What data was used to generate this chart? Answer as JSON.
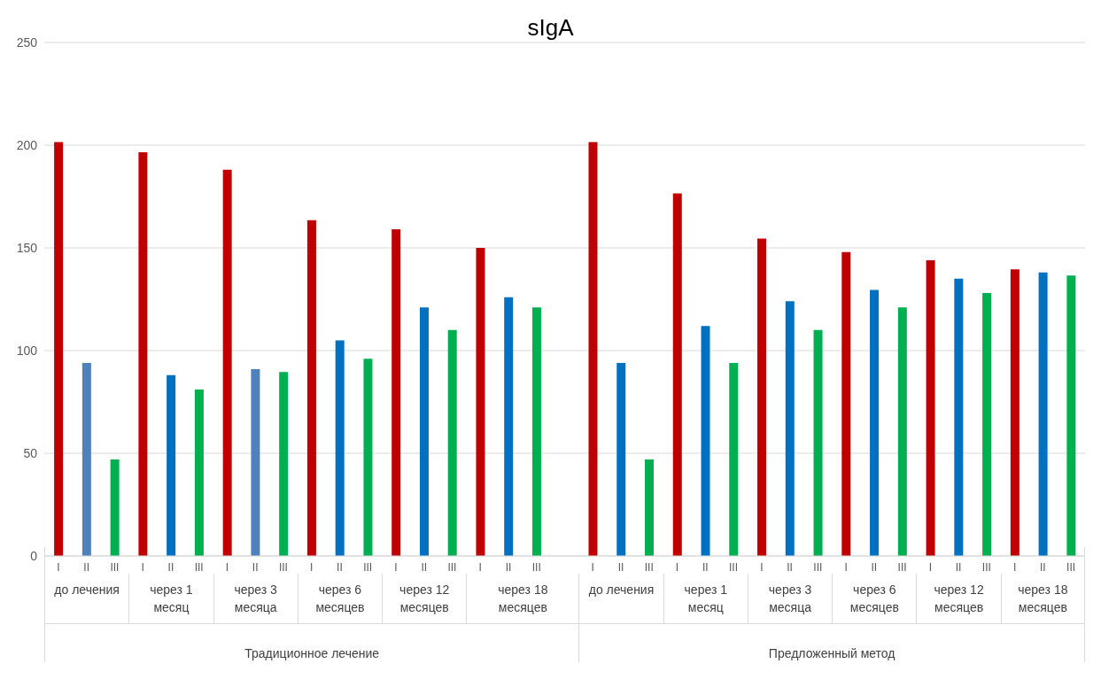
{
  "chart_data": {
    "type": "bar",
    "title": "sIgA",
    "categories": [
      "I",
      "II",
      "III",
      "I",
      "II",
      "III",
      "I",
      "II",
      "III",
      "I",
      "II",
      "III",
      "I",
      "II",
      "III",
      "I",
      "II",
      "III",
      null,
      "I",
      "II",
      "III",
      "I",
      "II",
      "III",
      "I",
      "II",
      "III",
      "I",
      "II",
      "III",
      "I",
      "II",
      "III",
      "I",
      "II",
      "III"
    ],
    "values": [
      201.5,
      94,
      47,
      196.5,
      88,
      81,
      188,
      91,
      89.5,
      163.5,
      105,
      96,
      159,
      121,
      110,
      150,
      126,
      121,
      null,
      201.5,
      94,
      47,
      176.5,
      112,
      94,
      154.5,
      124,
      110,
      148,
      129.5,
      121,
      144,
      135,
      128,
      139.5,
      138,
      136.5
    ],
    "colors": [
      "#c00000",
      "#4f81bd",
      "#00b050",
      "#c00000",
      "#0070c0",
      "#00b050",
      "#c00000",
      "#4f81bd",
      "#00b050",
      "#c00000",
      "#0070c0",
      "#00b050",
      "#c00000",
      "#0070c0",
      "#00b050",
      "#c00000",
      "#0070c0",
      "#00b050",
      "#ffffff",
      "#c00000",
      "#0070c0",
      "#00b050",
      "#c00000",
      "#0070c0",
      "#00b050",
      "#c00000",
      "#0070c0",
      "#00b050",
      "#c00000",
      "#0070c0",
      "#00b050",
      "#c00000",
      "#0070c0",
      "#00b050",
      "#c00000",
      "#0070c0",
      "#00b050"
    ],
    "annotations": [
      "до лечения",
      "через 1 месяц",
      "через 3 месяца",
      "через 6 месяцев",
      "через 12 месяцев",
      "через 18 месяцев",
      "до лечения",
      "через 1 месяц",
      "через 3 месяца",
      "через 6 месяцев",
      "через 12 месяцев",
      "через 18 месяцев",
      "Традиционное лечение",
      "Предложенный метод"
    ],
    "ylim": [
      0,
      250
    ],
    "yticks": [
      0,
      50,
      100,
      150,
      200,
      250
    ],
    "grid": "y"
  }
}
